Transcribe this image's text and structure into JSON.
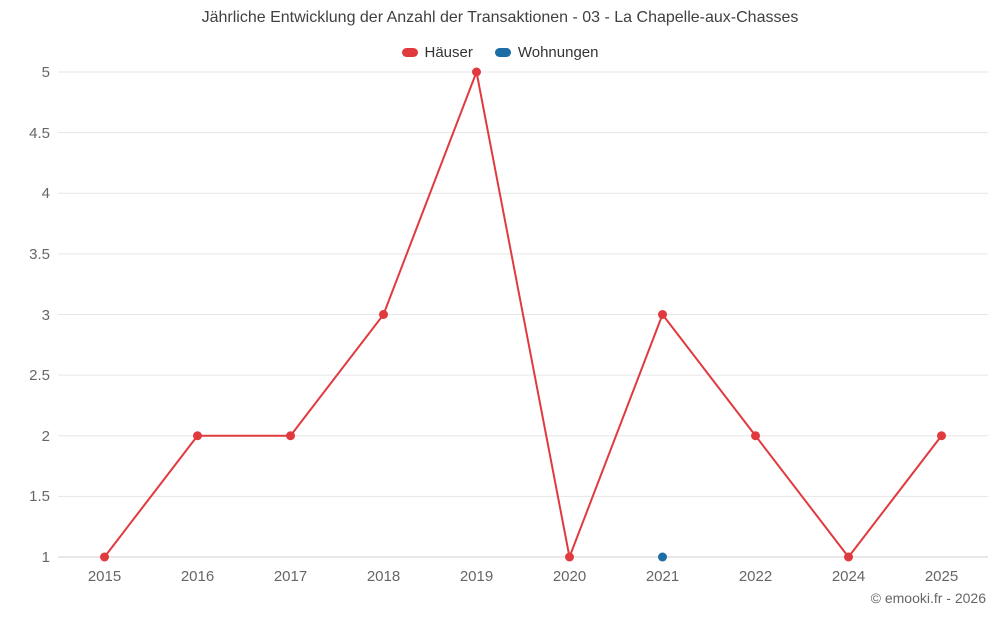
{
  "chart_data": {
    "type": "line",
    "title": "Jährliche Entwicklung der Anzahl der Transaktionen - 03 - La Chapelle-aux-Chasses",
    "xlabel": "",
    "ylabel": "",
    "categories": [
      "2015",
      "2016",
      "2017",
      "2018",
      "2019",
      "2020",
      "2021",
      "2022",
      "2024",
      "2025"
    ],
    "series": [
      {
        "name": "Häuser",
        "color": "#e03a3f",
        "values": [
          1,
          2,
          2,
          3,
          5,
          1,
          3,
          2,
          1,
          2
        ]
      },
      {
        "name": "Wohnungen",
        "color": "#1c6ea4",
        "values": [
          null,
          null,
          null,
          null,
          null,
          null,
          1,
          null,
          null,
          null
        ]
      }
    ],
    "yticks": [
      1,
      1.5,
      2,
      2.5,
      3,
      3.5,
      4,
      4.5,
      5
    ],
    "ylim": [
      1,
      5
    ],
    "grid": "horizontal",
    "gridline_color": "#e6e6e6",
    "axis_line_color": "#d0d0d0",
    "legend_position": "top"
  },
  "footer": {
    "attribution": "© emooki.fr - 2026"
  }
}
